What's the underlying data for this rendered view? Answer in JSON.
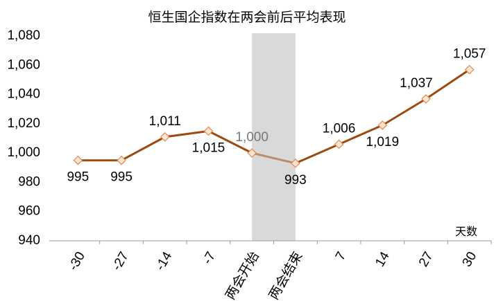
{
  "chart_data": {
    "type": "line",
    "title": "恒生国企指数在两会前后平均表现",
    "categories": [
      "-30",
      "-27",
      "-14",
      "-7",
      "两会开始",
      "两会结束",
      "7",
      "14",
      "27",
      "30"
    ],
    "series": [
      {
        "name": "恒生国企指数",
        "color": "#9c4a10",
        "values": [
          995,
          995,
          1011,
          1015,
          1000,
          993,
          1006,
          1019,
          1037,
          1057
        ],
        "value_labels": [
          "995",
          "995",
          "1,011",
          "1,015",
          "1,000",
          "993",
          "1,006",
          "1,019",
          "1,037",
          "1,057"
        ]
      }
    ],
    "xlabel": "天数",
    "ylim": [
      940,
      1080
    ],
    "yticks": [
      940,
      960,
      980,
      {
        "value": 1000,
        "label": "1,000"
      },
      {
        "value": 1020,
        "label": "1,020"
      },
      {
        "value": 1040,
        "label": "1,040"
      },
      {
        "value": 1060,
        "label": "1,060"
      },
      {
        "value": 1080,
        "label": "1,080"
      }
    ]
  }
}
